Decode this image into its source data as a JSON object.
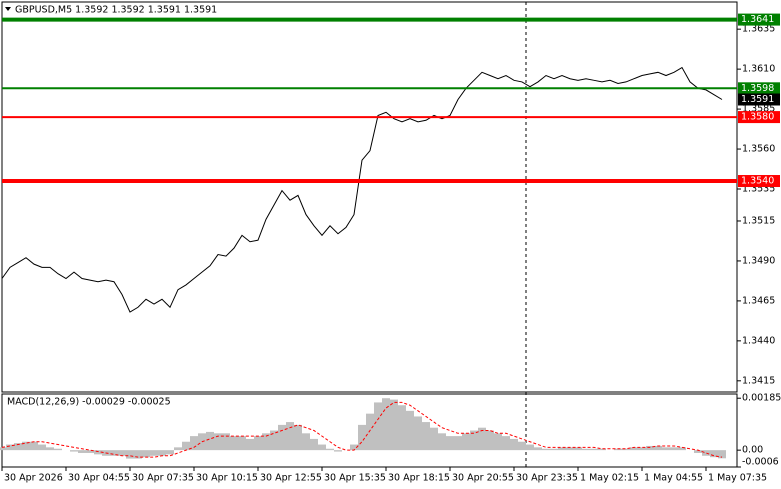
{
  "chart_data": [
    {
      "type": "line",
      "title": "GBPUSD,M5 1.3592 1.3592 1.3591 1.3591",
      "categories": [
        "30 Apr 2026",
        null,
        null,
        null,
        null,
        null,
        null,
        null,
        "30 Apr 04:55",
        null,
        null,
        null,
        null,
        null,
        null,
        null,
        "30 Apr 07:35",
        null,
        null,
        null,
        null,
        null,
        null,
        null,
        "30 Apr 10:15",
        null,
        null,
        null,
        null,
        null,
        null,
        null,
        "30 Apr 12:55",
        null,
        null,
        null,
        null,
        null,
        null,
        null,
        "30 Apr 15:35",
        null,
        null,
        null,
        null,
        null,
        null,
        null,
        "30 Apr 18:15",
        null,
        null,
        null,
        null,
        null,
        null,
        null,
        "30 Apr 20:55",
        null,
        null,
        null,
        null,
        null,
        null,
        null,
        "30 Apr 23:35",
        null,
        null,
        null,
        null,
        null,
        null,
        null,
        "1 May 02:15",
        null,
        null,
        null,
        null,
        null,
        null,
        null,
        "1 May 04:55",
        null,
        null,
        null,
        null,
        null,
        null,
        null,
        "1 May 07:35",
        null,
        null
      ],
      "values": [
        1.3479,
        1.3486,
        1.3489,
        1.3492,
        1.3488,
        1.3486,
        1.3486,
        1.3482,
        1.3479,
        1.3483,
        1.3479,
        1.3478,
        1.3477,
        1.3478,
        1.3477,
        1.3469,
        1.3458,
        1.3461,
        1.3466,
        1.3463,
        1.3466,
        1.3461,
        1.3472,
        1.3475,
        1.3479,
        1.3483,
        1.3487,
        1.3494,
        1.3493,
        1.3498,
        1.3506,
        1.3502,
        1.3503,
        1.3516,
        1.3525,
        1.3534,
        1.3528,
        1.3531,
        1.3519,
        1.3512,
        1.3506,
        1.3512,
        1.3507,
        1.3511,
        1.3519,
        1.3553,
        1.3559,
        1.3581,
        1.3583,
        1.3579,
        1.3577,
        1.3579,
        1.3577,
        1.3578,
        1.3581,
        1.3579,
        1.3581,
        1.3591,
        1.3598,
        1.3603,
        1.3608,
        1.3606,
        1.3604,
        1.3606,
        1.3603,
        1.3602,
        1.3599,
        1.3602,
        1.3606,
        1.3604,
        1.3606,
        1.3604,
        1.3603,
        1.3604,
        1.3603,
        1.3602,
        1.3603,
        1.3601,
        1.3602,
        1.3604,
        1.3606,
        1.3607,
        1.3608,
        1.3606,
        1.3608,
        1.3611,
        1.3602,
        1.3598,
        1.3597,
        1.3594,
        1.3591
      ],
      "color": "#000000",
      "ylim": [
        1.3408,
        1.3652
      ],
      "yticks": [
        1.3635,
        {
          "value": 1.361,
          "label": "1.3610"
        },
        1.3585,
        {
          "value": 1.356,
          "label": "1.3560"
        },
        1.3535,
        1.3515,
        {
          "value": 1.349,
          "label": "1.3490"
        },
        1.3465,
        {
          "value": 1.344,
          "label": "1.3440"
        },
        1.3415
      ],
      "levels": [
        {
          "value": 1.3641,
          "color": "#008000",
          "style": "thick"
        },
        {
          "value": 1.3598,
          "color": "#008000",
          "style": "thin"
        },
        {
          "value": 1.358,
          "label": "1.3580",
          "color": "#ff0000",
          "style": "thin"
        },
        {
          "value": 1.354,
          "label": "1.3540",
          "color": "#ff0000",
          "style": "thick"
        }
      ],
      "last_value": 1.3591
    },
    {
      "type": "bar",
      "title": "MACD(12,26,9) -0.00029 -0.00025",
      "series": [
        {
          "type": "bar",
          "color": "#c0c0c0",
          "values": [
            0.0001,
            0.0002,
            0.00025,
            0.0003,
            0.0003,
            0.0002,
            0.0001,
            5e-05,
            0,
            -5e-05,
            -0.0001,
            -0.0001,
            -0.00015,
            -0.0002,
            -0.0002,
            -0.0002,
            -0.0003,
            -0.0003,
            -0.00025,
            -0.0002,
            -0.0002,
            -0.00015,
            0.0001,
            0.0003,
            0.0005,
            0.0006,
            0.00065,
            0.0006,
            0.0006,
            0.0005,
            0.0005,
            0.0004,
            0.0005,
            0.0006,
            0.0007,
            0.0009,
            0.001,
            0.0009,
            0.0006,
            0.0004,
            0.0002,
            5e-05,
            -5e-05,
            0,
            0.0002,
            0.0009,
            0.0013,
            0.0017,
            0.00185,
            0.0018,
            0.0016,
            0.0014,
            0.0012,
            0.001,
            0.0008,
            0.0006,
            0.0005,
            0.0005,
            0.0006,
            0.0007,
            0.0008,
            0.0007,
            0.0006,
            0.0005,
            0.0004,
            0.0003,
            0.0002,
            0.0001,
            5e-05,
            5e-05,
            0.0001,
            0.0001,
            0.0001,
            5e-05,
            5e-05,
            5e-05,
            0,
            5e-05,
            5e-05,
            0.0001,
            0.0001,
            0.00015,
            0.00015,
            0.0001,
            0.0001,
            0.0001,
            0,
            -0.0001,
            -0.0002,
            -0.00025,
            -0.00029
          ]
        },
        {
          "type": "line",
          "color": "#ff0000",
          "values": [
            0.0001,
            0.00015,
            0.0002,
            0.00025,
            0.0003,
            0.0003,
            0.00025,
            0.0002,
            0.00015,
            0.0001,
            5e-05,
            0,
            -5e-05,
            -0.0001,
            -0.00015,
            -0.0002,
            -0.0002,
            -0.00025,
            -0.00025,
            -0.00025,
            -0.0002,
            -0.0002,
            -0.0001,
            0,
            0.0001,
            0.0003,
            0.0004,
            0.0005,
            0.0005,
            0.0005,
            0.0005,
            0.0005,
            0.0005,
            0.0005,
            0.0006,
            0.0007,
            0.0008,
            0.0009,
            0.0008,
            0.0007,
            0.0005,
            0.0003,
            0.0001,
            0,
            0,
            0.0003,
            0.0007,
            0.0011,
            0.0015,
            0.0017,
            0.0017,
            0.0016,
            0.0014,
            0.0012,
            0.001,
            0.0008,
            0.0007,
            0.0006,
            0.0006,
            0.0006,
            0.0007,
            0.0007,
            0.0006,
            0.0006,
            0.0005,
            0.0004,
            0.0003,
            0.0002,
            0.0001,
            0.0001,
            0.0001,
            0.0001,
            0.0001,
            0.0001,
            0.0001,
            5e-05,
            5e-05,
            5e-05,
            5e-05,
            0.0001,
            0.0001,
            0.0001,
            0.00015,
            0.00015,
            0.00015,
            0.0001,
            5e-05,
            0,
            -0.0001,
            -0.0002,
            -0.00025
          ]
        }
      ],
      "ylim": [
        -0.0006,
        0.002
      ],
      "yticks": [
        0.00185,
        {
          "value": 0,
          "label": "0.00"
        },
        -0.0006
      ]
    }
  ]
}
